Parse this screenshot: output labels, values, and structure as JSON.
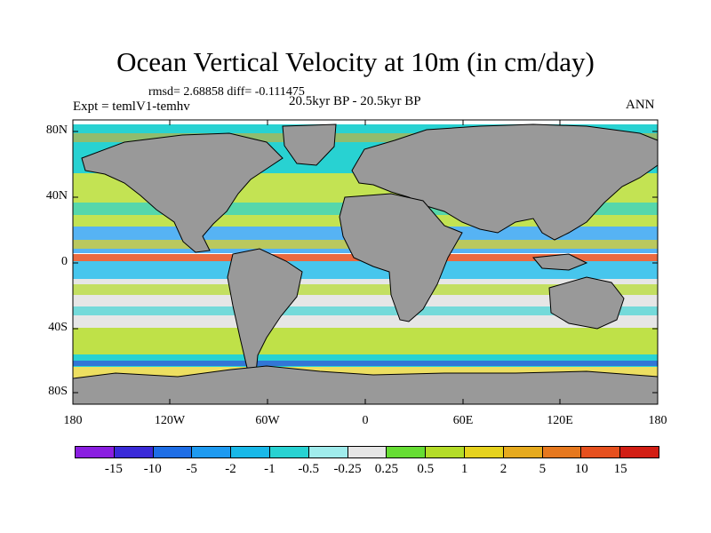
{
  "title": "Ocean Vertical Velocity at 10m (in cm/day)",
  "stats": "rmsd= 2.68858 diff= -0.111475",
  "expt": "Expt = temlV1-temhv",
  "center_label": "20.5kyr BP - 20.5kyr BP",
  "season": "ANN",
  "lat_labels": [
    "80N",
    "40N",
    "0",
    "40S",
    "80S"
  ],
  "lon_labels": [
    "180",
    "120W",
    "60W",
    "0",
    "60E",
    "120E",
    "180"
  ],
  "colorbar": {
    "labels": [
      "-15",
      "-10",
      "-5",
      "-2",
      "-1",
      "-0.5",
      "-0.25",
      "0.25",
      "0.5",
      "1",
      "2",
      "5",
      "10",
      "15"
    ],
    "colors": [
      "#8a1ee0",
      "#3a2ad8",
      "#1e6ee6",
      "#1e9af0",
      "#19b8e8",
      "#28d2d2",
      "#a0ecec",
      "#e6e6e6",
      "#66dd33",
      "#b4dc28",
      "#e6d21e",
      "#e6aa1e",
      "#e6781e",
      "#e6501e",
      "#d21e14"
    ]
  },
  "map_colors": {
    "land": "#999999",
    "coast": "#000000"
  }
}
